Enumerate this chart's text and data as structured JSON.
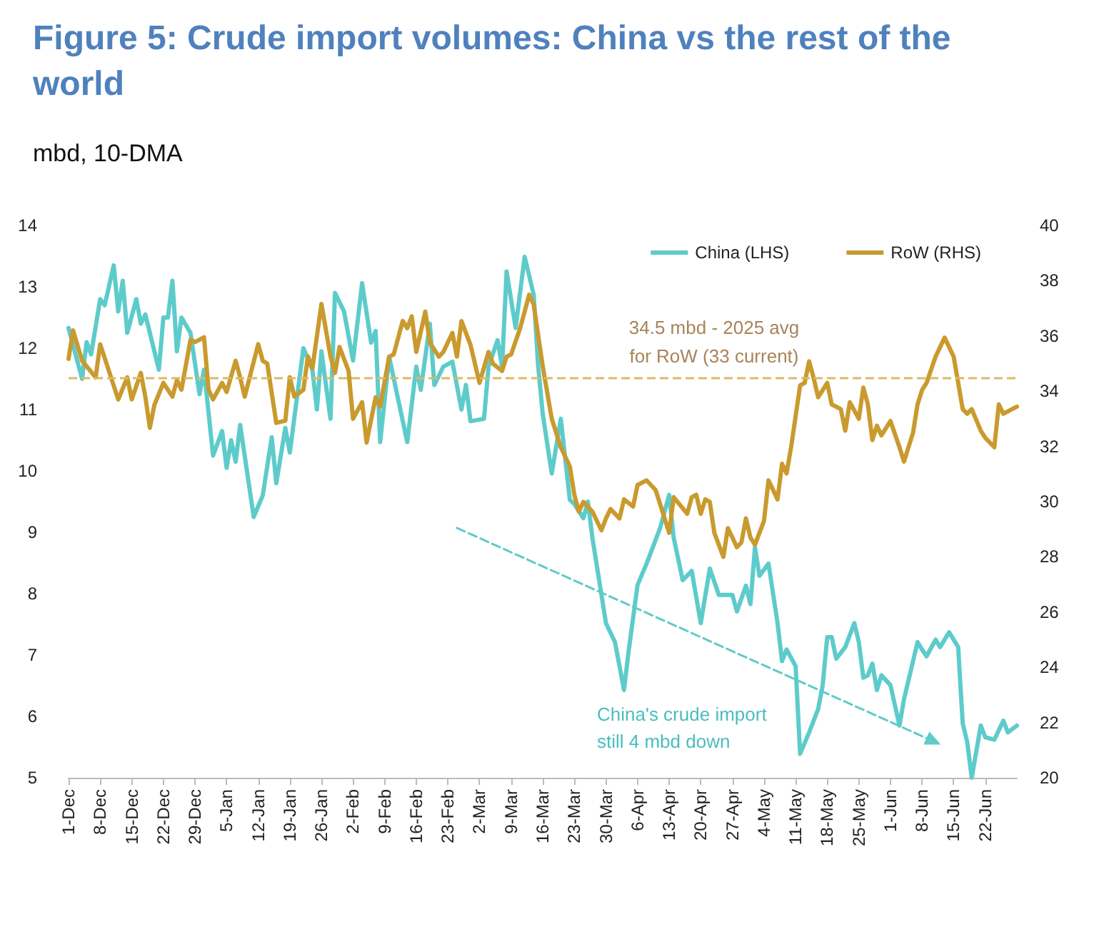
{
  "chart_data": {
    "type": "line",
    "title": "Figure 5: Crude import volumes: China vs the rest of the world",
    "subtitle": "mbd, 10-DMA",
    "marker": "none",
    "grid": false,
    "legend": "top right",
    "xlim": [
      "2024-12-01",
      "2025-06-29"
    ],
    "xticks": [
      {
        "value": "2024-12-01",
        "label": "1-Dec"
      },
      {
        "value": "2024-12-08",
        "label": "8-Dec"
      },
      {
        "value": "2024-12-15",
        "label": "15-Dec"
      },
      {
        "value": "2024-12-22",
        "label": "22-Dec"
      },
      {
        "value": "2024-12-29",
        "label": "29-Dec"
      },
      {
        "value": "2025-01-05",
        "label": "5-Jan"
      },
      {
        "value": "2025-01-12",
        "label": "12-Jan"
      },
      {
        "value": "2025-01-19",
        "label": "19-Jan"
      },
      {
        "value": "2025-01-26",
        "label": "26-Jan"
      },
      {
        "value": "2025-02-02",
        "label": "2-Feb"
      },
      {
        "value": "2025-02-09",
        "label": "9-Feb"
      },
      {
        "value": "2025-02-16",
        "label": "16-Feb"
      },
      {
        "value": "2025-02-23",
        "label": "23-Feb"
      },
      {
        "value": "2025-03-02",
        "label": "2-Mar"
      },
      {
        "value": "2025-03-09",
        "label": "9-Mar"
      },
      {
        "value": "2025-03-16",
        "label": "16-Mar"
      },
      {
        "value": "2025-03-23",
        "label": "23-Mar"
      },
      {
        "value": "2025-03-30",
        "label": "30-Mar"
      },
      {
        "value": "2025-04-06",
        "label": "6-Apr"
      },
      {
        "value": "2025-04-13",
        "label": "13-Apr"
      },
      {
        "value": "2025-04-20",
        "label": "20-Apr"
      },
      {
        "value": "2025-04-27",
        "label": "27-Apr"
      },
      {
        "value": "2025-05-04",
        "label": "4-May"
      },
      {
        "value": "2025-05-11",
        "label": "11-May"
      },
      {
        "value": "2025-05-18",
        "label": "18-May"
      },
      {
        "value": "2025-05-25",
        "label": "25-May"
      },
      {
        "value": "2025-06-01",
        "label": "1-Jun"
      },
      {
        "value": "2025-06-08",
        "label": "8-Jun"
      },
      {
        "value": "2025-06-15",
        "label": "15-Jun"
      },
      {
        "value": "2025-06-22",
        "label": "22-Jun"
      }
    ],
    "ylim": [
      5,
      14
    ],
    "yticks": [
      5,
      6,
      7,
      8,
      9,
      10,
      11,
      12,
      13,
      14
    ],
    "y2lim": [
      20,
      40
    ],
    "y2ticks": [
      20,
      22,
      24,
      26,
      28,
      30,
      32,
      34,
      36,
      38,
      40
    ],
    "series": [
      {
        "name": "China (LHS)",
        "color": "#5ecbcb",
        "axis": "y",
        "x": [
          "2024-12-01",
          "2024-12-04",
          "2024-12-05",
          "2024-12-06",
          "2024-12-08",
          "2024-12-09",
          "2024-12-11",
          "2024-12-12",
          "2024-12-13",
          "2024-12-14",
          "2024-12-16",
          "2024-12-17",
          "2024-12-18",
          "2024-12-21",
          "2024-12-22",
          "2024-12-23",
          "2024-12-24",
          "2024-12-25",
          "2024-12-26",
          "2024-12-28",
          "2024-12-30",
          "2024-12-31",
          "2025-01-02",
          "2025-01-04",
          "2025-01-05",
          "2025-01-06",
          "2025-01-07",
          "2025-01-08",
          "2025-01-11",
          "2025-01-13",
          "2025-01-15",
          "2025-01-16",
          "2025-01-18",
          "2025-01-19",
          "2025-01-22",
          "2025-01-24",
          "2025-01-25",
          "2025-01-26",
          "2025-01-28",
          "2025-01-29",
          "2025-01-31",
          "2025-02-02",
          "2025-02-04",
          "2025-02-06",
          "2025-02-07",
          "2025-02-08",
          "2025-02-10",
          "2025-02-12",
          "2025-02-14",
          "2025-02-16",
          "2025-02-17",
          "2025-02-19",
          "2025-02-20",
          "2025-02-22",
          "2025-02-24",
          "2025-02-26",
          "2025-02-27",
          "2025-02-28",
          "2025-03-03",
          "2025-03-04",
          "2025-03-06",
          "2025-03-07",
          "2025-03-08",
          "2025-03-10",
          "2025-03-12",
          "2025-03-14",
          "2025-03-15",
          "2025-03-16",
          "2025-03-18",
          "2025-03-20",
          "2025-03-22",
          "2025-03-23",
          "2025-03-25",
          "2025-03-26",
          "2025-03-27",
          "2025-03-30",
          "2025-04-01",
          "2025-04-03",
          "2025-04-04",
          "2025-04-06",
          "2025-04-08",
          "2025-04-11",
          "2025-04-13",
          "2025-04-14",
          "2025-04-16",
          "2025-04-18",
          "2025-04-20",
          "2025-04-22",
          "2025-04-24",
          "2025-04-27",
          "2025-04-28",
          "2025-04-30",
          "2025-05-01",
          "2025-05-02",
          "2025-05-03",
          "2025-05-05",
          "2025-05-07",
          "2025-05-08",
          "2025-05-09",
          "2025-05-11",
          "2025-05-12",
          "2025-05-14",
          "2025-05-16",
          "2025-05-17",
          "2025-05-18",
          "2025-05-19",
          "2025-05-20",
          "2025-05-22",
          "2025-05-24",
          "2025-05-25",
          "2025-05-26",
          "2025-05-27",
          "2025-05-28",
          "2025-05-29",
          "2025-05-30",
          "2025-06-01",
          "2025-06-03",
          "2025-06-04",
          "2025-06-06",
          "2025-06-07",
          "2025-06-08",
          "2025-06-09",
          "2025-06-11",
          "2025-06-12",
          "2025-06-14",
          "2025-06-16",
          "2025-06-17",
          "2025-06-18",
          "2025-06-19",
          "2025-06-21",
          "2025-06-22",
          "2025-06-24",
          "2025-06-26",
          "2025-06-27",
          "2025-06-29"
        ],
        "values": [
          12.33,
          11.5,
          12.1,
          11.9,
          12.8,
          12.7,
          13.35,
          12.6,
          13.1,
          12.25,
          12.8,
          12.4,
          12.55,
          11.65,
          12.5,
          12.5,
          13.1,
          11.95,
          12.5,
          12.25,
          11.25,
          11.65,
          10.25,
          10.65,
          10.05,
          10.5,
          10.15,
          10.75,
          9.25,
          9.6,
          10.55,
          9.8,
          10.7,
          10.3,
          12.0,
          11.65,
          11.0,
          11.95,
          10.85,
          12.9,
          12.6,
          11.8,
          13.06,
          12.09,
          12.28,
          10.47,
          11.86,
          11.16,
          10.47,
          11.7,
          11.32,
          12.4,
          11.4,
          11.7,
          11.78,
          11.0,
          11.4,
          10.81,
          10.85,
          11.7,
          12.13,
          11.7,
          13.25,
          12.33,
          13.49,
          12.87,
          11.7,
          10.93,
          9.96,
          10.85,
          9.53,
          9.46,
          9.23,
          9.5,
          8.91,
          7.52,
          7.21,
          6.43,
          7.05,
          8.14,
          8.49,
          9.07,
          9.61,
          8.91,
          8.22,
          8.37,
          7.52,
          8.41,
          7.98,
          7.98,
          7.71,
          8.13,
          7.83,
          8.76,
          8.29,
          8.49,
          7.52,
          6.9,
          7.09,
          6.82,
          5.39,
          5.74,
          6.12,
          6.51,
          7.29,
          7.29,
          6.94,
          7.13,
          7.52,
          7.21,
          6.63,
          6.67,
          6.86,
          6.43,
          6.67,
          6.51,
          5.85,
          6.28,
          6.9,
          7.21,
          7.09,
          6.98,
          7.25,
          7.13,
          7.37,
          7.13,
          5.89,
          5.58,
          5.0,
          5.85,
          5.66,
          5.62,
          5.93,
          5.74,
          5.85
        ]
      },
      {
        "name": "RoW (RHS)",
        "color": "#c99a2e",
        "axis": "y2",
        "x": [
          "2024-12-01",
          "2024-12-02",
          "2024-12-04",
          "2024-12-06",
          "2024-12-07",
          "2024-12-08",
          "2024-12-10",
          "2024-12-12",
          "2024-12-14",
          "2024-12-15",
          "2024-12-17",
          "2024-12-18",
          "2024-12-19",
          "2024-12-20",
          "2024-12-22",
          "2024-12-24",
          "2024-12-25",
          "2024-12-26",
          "2024-12-28",
          "2024-12-29",
          "2024-12-31",
          "2025-01-01",
          "2025-01-02",
          "2025-01-04",
          "2025-01-05",
          "2025-01-07",
          "2025-01-08",
          "2025-01-09",
          "2025-01-12",
          "2025-01-13",
          "2025-01-14",
          "2025-01-16",
          "2025-01-18",
          "2025-01-19",
          "2025-01-20",
          "2025-01-22",
          "2025-01-23",
          "2025-01-24",
          "2025-01-26",
          "2025-01-28",
          "2025-01-29",
          "2025-01-30",
          "2025-02-01",
          "2025-02-02",
          "2025-02-04",
          "2025-02-05",
          "2025-02-07",
          "2025-02-08",
          "2025-02-10",
          "2025-02-11",
          "2025-02-13",
          "2025-02-14",
          "2025-02-15",
          "2025-02-16",
          "2025-02-18",
          "2025-02-19",
          "2025-02-21",
          "2025-02-22",
          "2025-02-24",
          "2025-02-25",
          "2025-02-26",
          "2025-02-28",
          "2025-03-02",
          "2025-03-04",
          "2025-03-05",
          "2025-03-07",
          "2025-03-08",
          "2025-03-09",
          "2025-03-11",
          "2025-03-13",
          "2025-03-14",
          "2025-03-16",
          "2025-03-18",
          "2025-03-20",
          "2025-03-22",
          "2025-03-23",
          "2025-03-24",
          "2025-03-25",
          "2025-03-27",
          "2025-03-29",
          "2025-03-30",
          "2025-03-31",
          "2025-04-02",
          "2025-04-03",
          "2025-04-05",
          "2025-04-06",
          "2025-04-08",
          "2025-04-10",
          "2025-04-12",
          "2025-04-13",
          "2025-04-14",
          "2025-04-17",
          "2025-04-18",
          "2025-04-19",
          "2025-04-20",
          "2025-04-21",
          "2025-04-22",
          "2025-04-23",
          "2025-04-25",
          "2025-04-26",
          "2025-04-28",
          "2025-04-29",
          "2025-04-30",
          "2025-05-01",
          "2025-05-02",
          "2025-05-04",
          "2025-05-05",
          "2025-05-07",
          "2025-05-08",
          "2025-05-09",
          "2025-05-10",
          "2025-05-12",
          "2025-05-13",
          "2025-05-14",
          "2025-05-15",
          "2025-05-16",
          "2025-05-18",
          "2025-05-19",
          "2025-05-21",
          "2025-05-22",
          "2025-05-23",
          "2025-05-25",
          "2025-05-26",
          "2025-05-27",
          "2025-05-28",
          "2025-05-29",
          "2025-05-30",
          "2025-06-01",
          "2025-06-03",
          "2025-06-04",
          "2025-06-06",
          "2025-06-07",
          "2025-06-08",
          "2025-06-09",
          "2025-06-11",
          "2025-06-13",
          "2025-06-15",
          "2025-06-16",
          "2025-06-17",
          "2025-06-18",
          "2025-06-19",
          "2025-06-21",
          "2025-06-22",
          "2025-06-24",
          "2025-06-25",
          "2025-06-26",
          "2025-06-29"
        ],
        "values": [
          35.17,
          36.2,
          35.1,
          34.7,
          34.5,
          35.7,
          34.7,
          33.7,
          34.5,
          33.7,
          34.66,
          33.8,
          32.67,
          33.5,
          34.3,
          33.8,
          34.4,
          34.05,
          35.86,
          35.78,
          35.95,
          34.05,
          33.7,
          34.3,
          33.97,
          35.1,
          34.5,
          33.8,
          35.7,
          35.1,
          35.0,
          32.85,
          32.93,
          34.5,
          33.8,
          34.05,
          35.26,
          34.83,
          37.16,
          35.26,
          34.66,
          35.6,
          34.74,
          33.0,
          33.6,
          32.14,
          33.78,
          33.44,
          35.25,
          35.33,
          36.54,
          36.28,
          36.71,
          35.42,
          36.88,
          35.76,
          35.25,
          35.42,
          36.11,
          35.25,
          36.54,
          35.68,
          34.3,
          35.42,
          34.99,
          34.73,
          35.25,
          35.33,
          36.28,
          37.49,
          37.14,
          34.9,
          33.0,
          31.97,
          31.28,
          30.25,
          29.64,
          29.99,
          29.64,
          28.96,
          29.39,
          29.73,
          29.39,
          30.08,
          29.82,
          30.6,
          30.77,
          30.42,
          29.39,
          28.87,
          30.16,
          29.56,
          30.16,
          30.25,
          29.56,
          30.08,
          29.99,
          28.87,
          28.0,
          29.04,
          28.35,
          28.52,
          29.39,
          28.7,
          28.44,
          29.3,
          30.77,
          30.08,
          31.37,
          31.02,
          31.97,
          34.21,
          34.3,
          35.08,
          34.47,
          33.78,
          34.3,
          33.52,
          33.35,
          32.57,
          33.6,
          33.0,
          34.13,
          33.52,
          32.23,
          32.75,
          32.4,
          32.92,
          31.97,
          31.45,
          32.49,
          33.52,
          34.04,
          34.3,
          35.25,
          35.94,
          35.25,
          34.3,
          33.35,
          33.18,
          33.35,
          32.57,
          32.31,
          31.97,
          33.52,
          33.18,
          33.44
        ]
      },
      {
        "type": "line",
        "color": "#5ecbcb",
        "axis": "y",
        "line_style": "dashed",
        "marker": "triangle",
        "x": [
          "2025-02-25",
          "2025-06-11"
        ],
        "values": [
          9.07,
          5.58
        ]
      }
    ],
    "ref_lines": [
      {
        "axis": "y2",
        "value": 34.5,
        "label": "34.5 mbd - 2025 avg\nfor RoW (33 current)",
        "color": "#dcb968",
        "line_style": "dashed"
      }
    ],
    "annotations": [
      "China's crude import\nstill 4 mbd down"
    ]
  }
}
